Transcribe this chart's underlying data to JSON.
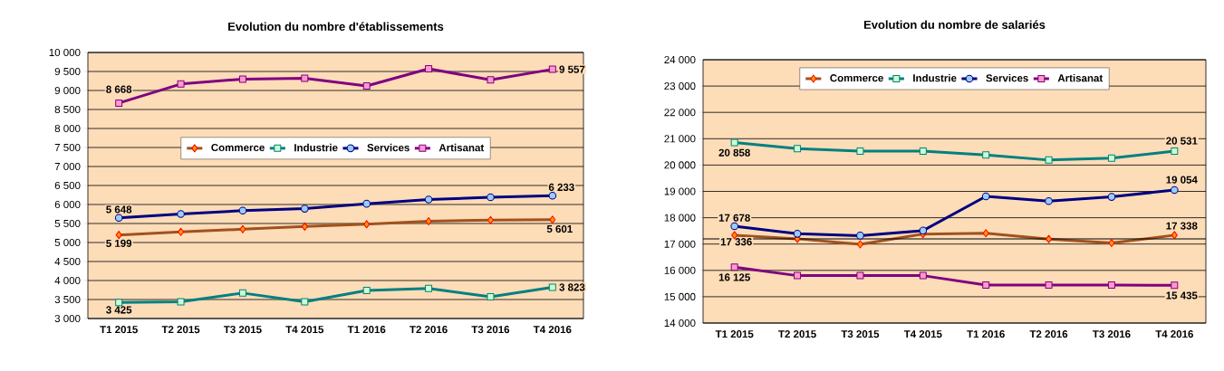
{
  "chart_data": [
    {
      "type": "line",
      "title": "Evolution du nombre d'établissements",
      "categories": [
        "T1 2015",
        "T2 2015",
        "T3 2015",
        "T4 2015",
        "T1 2016",
        "T2 2016",
        "T3 2016",
        "T4 2016"
      ],
      "series": [
        {
          "name": "Commerce",
          "color": "#a0521e",
          "marker": "diamond",
          "values": [
            5199,
            5280,
            5350,
            5420,
            5480,
            5560,
            5590,
            5601
          ],
          "value_labels": [
            "5 199",
            null,
            null,
            null,
            null,
            null,
            null,
            "5 601"
          ]
        },
        {
          "name": "Industrie",
          "color": "#008080",
          "marker": "square",
          "values": [
            3425,
            3440,
            3670,
            3440,
            3740,
            3790,
            3570,
            3823
          ],
          "value_labels": [
            "3 425",
            null,
            null,
            null,
            null,
            null,
            null,
            "3 823"
          ]
        },
        {
          "name": "Services",
          "color": "#000080",
          "marker": "circle",
          "values": [
            5648,
            5750,
            5840,
            5890,
            6020,
            6130,
            6190,
            6233
          ],
          "value_labels": [
            "5 648",
            null,
            null,
            null,
            null,
            null,
            null,
            "6 233"
          ]
        },
        {
          "name": "Artisanat",
          "color": "#800080",
          "marker": "square",
          "values": [
            8668,
            9170,
            9300,
            9320,
            9120,
            9570,
            9280,
            9557
          ],
          "value_labels": [
            "8 668",
            null,
            null,
            null,
            null,
            null,
            null,
            "9 557"
          ]
        }
      ],
      "ylim": [
        3000,
        10000
      ],
      "yticks": [
        {
          "value": 3000,
          "label": "3 000"
        },
        {
          "value": 3500,
          "label": "3 500"
        },
        {
          "value": 4000,
          "label": "4 000"
        },
        {
          "value": 4500,
          "label": "4 500"
        },
        {
          "value": 5000,
          "label": "5 000"
        },
        {
          "value": 5500,
          "label": "5 500"
        },
        {
          "value": 6000,
          "label": "6 000"
        },
        {
          "value": 6500,
          "label": "6 500"
        },
        {
          "value": 7000,
          "label": "7 000"
        },
        {
          "value": 7500,
          "label": "7 500"
        },
        {
          "value": 8000,
          "label": "8 000"
        },
        {
          "value": 8500,
          "label": "8 500"
        },
        {
          "value": 9000,
          "label": "9 000"
        },
        {
          "value": 9500,
          "label": "9 500"
        },
        {
          "value": 10000,
          "label": "10 000"
        }
      ],
      "grid": "y",
      "legend": "center",
      "line_style": "solid"
    },
    {
      "type": "line",
      "title": "Evolution du nombre de salariés",
      "categories": [
        "T1 2015",
        "T2 2015",
        "T3 2015",
        "T4 2015",
        "T1 2016",
        "T2 2016",
        "T3 2016",
        "T4 2016"
      ],
      "series": [
        {
          "name": "Commerce",
          "color": "#a0521e",
          "marker": "diamond",
          "values": [
            17336,
            17200,
            16990,
            17380,
            17410,
            17190,
            17040,
            17338
          ],
          "value_labels": [
            "17 336",
            null,
            null,
            null,
            null,
            null,
            null,
            "17 338"
          ]
        },
        {
          "name": "Industrie",
          "color": "#008080",
          "marker": "square",
          "values": [
            20858,
            20620,
            20530,
            20530,
            20380,
            20190,
            20260,
            20531
          ],
          "value_labels": [
            "20 858",
            null,
            null,
            null,
            null,
            null,
            null,
            "20 531"
          ]
        },
        {
          "name": "Services",
          "color": "#000080",
          "marker": "circle",
          "values": [
            17678,
            17390,
            17320,
            17510,
            18810,
            18630,
            18790,
            19054
          ],
          "value_labels": [
            "17 678",
            null,
            null,
            null,
            null,
            null,
            null,
            "19 054"
          ]
        },
        {
          "name": "Artisanat",
          "color": "#800080",
          "marker": "square",
          "values": [
            16125,
            15800,
            15800,
            15800,
            15440,
            15440,
            15440,
            15435
          ],
          "value_labels": [
            "16 125",
            null,
            null,
            null,
            null,
            null,
            null,
            "15 435"
          ]
        }
      ],
      "ylim": [
        14000,
        24000
      ],
      "yticks": [
        {
          "value": 14000,
          "label": "14 000"
        },
        {
          "value": 15000,
          "label": "15 000"
        },
        {
          "value": 16000,
          "label": "16 000"
        },
        {
          "value": 17000,
          "label": "17 000"
        },
        {
          "value": 18000,
          "label": "18 000"
        },
        {
          "value": 19000,
          "label": "19 000"
        },
        {
          "value": 20000,
          "label": "20 000"
        },
        {
          "value": 21000,
          "label": "21 000"
        },
        {
          "value": 22000,
          "label": "22 000"
        },
        {
          "value": 23000,
          "label": "23 000"
        },
        {
          "value": 24000,
          "label": "24 000"
        }
      ],
      "ref_lines": [
        {
          "axis": "y",
          "value": 17200,
          "color": "#000000"
        }
      ],
      "grid": "y",
      "legend": "top",
      "line_style": "solid"
    }
  ]
}
